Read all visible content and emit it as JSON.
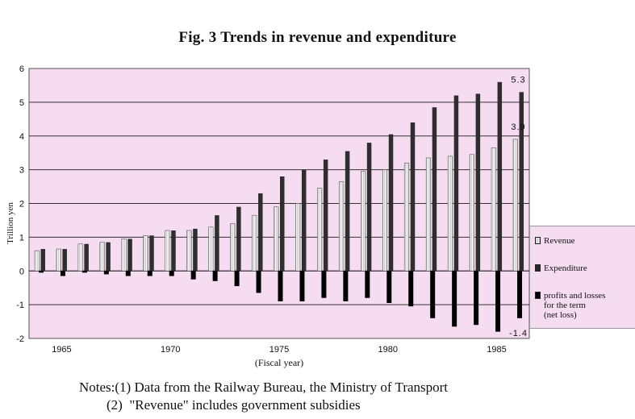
{
  "title": "Fig. 3  Trends in revenue and expenditure",
  "chart_data": {
    "type": "bar",
    "ylabel": "Trillion yen",
    "xlabel": "(Fiscal year)",
    "ylim": [
      -2,
      6
    ],
    "yticks": [
      -2,
      -1,
      0,
      1,
      2,
      3,
      4,
      5,
      6
    ],
    "x_tick_labels": [
      {
        "year": 1965,
        "label": "1965"
      },
      {
        "year": 1970,
        "label": "1970"
      },
      {
        "year": 1975,
        "label": "1975"
      },
      {
        "year": 1980,
        "label": "1980"
      },
      {
        "year": 1985,
        "label": "1985"
      }
    ],
    "years": [
      1964,
      1965,
      1966,
      1967,
      1968,
      1969,
      1970,
      1971,
      1972,
      1973,
      1974,
      1975,
      1976,
      1977,
      1978,
      1979,
      1980,
      1981,
      1982,
      1983,
      1984,
      1985,
      1986
    ],
    "series": [
      {
        "name": "Revenue",
        "values": [
          0.6,
          0.65,
          0.8,
          0.85,
          0.95,
          1.05,
          1.2,
          1.2,
          1.3,
          1.4,
          1.65,
          1.9,
          2.0,
          2.45,
          2.65,
          2.95,
          3.0,
          3.2,
          3.35,
          3.4,
          3.45,
          3.65,
          3.9
        ]
      },
      {
        "name": "Expenditure",
        "values": [
          0.65,
          0.65,
          0.8,
          0.85,
          0.95,
          1.05,
          1.2,
          1.25,
          1.65,
          1.9,
          2.3,
          2.8,
          3.0,
          3.3,
          3.55,
          3.8,
          4.05,
          4.4,
          4.85,
          5.2,
          5.25,
          5.6,
          5.3
        ]
      },
      {
        "name": "profits and losses for the term (net loss)",
        "values": [
          -0.05,
          -0.15,
          -0.05,
          -0.1,
          -0.15,
          -0.15,
          -0.15,
          -0.25,
          -0.3,
          -0.45,
          -0.65,
          -0.9,
          -0.9,
          -0.8,
          -0.9,
          -0.8,
          -0.95,
          -1.05,
          -1.4,
          -1.65,
          -1.6,
          -1.8,
          -1.4
        ]
      }
    ],
    "annotations": [
      {
        "text": "5.3",
        "year": 1986,
        "value": 5.3
      },
      {
        "text": "3.9",
        "year": 1986,
        "value": 3.9
      },
      {
        "text": "-1.4",
        "year": 1986,
        "value": -1.4
      }
    ],
    "grid": true,
    "legend_position": "right"
  },
  "legend": {
    "revenue": "Revenue",
    "expenditure": "Expenditure",
    "profits": "profits and losses\nfor the term\n(net loss)"
  },
  "notes": {
    "line1": "Notes:(1) Data from the Railway Bureau, the Ministry of Transport",
    "line2": "        (2)  \"Revenue\" includes government subsidies"
  },
  "colors": {
    "plot_bg": "#f6dcf0",
    "revenue_bar": "#c9c9c9",
    "expenditure_bar": "#2e2e2e",
    "loss_bar": "#000000"
  }
}
